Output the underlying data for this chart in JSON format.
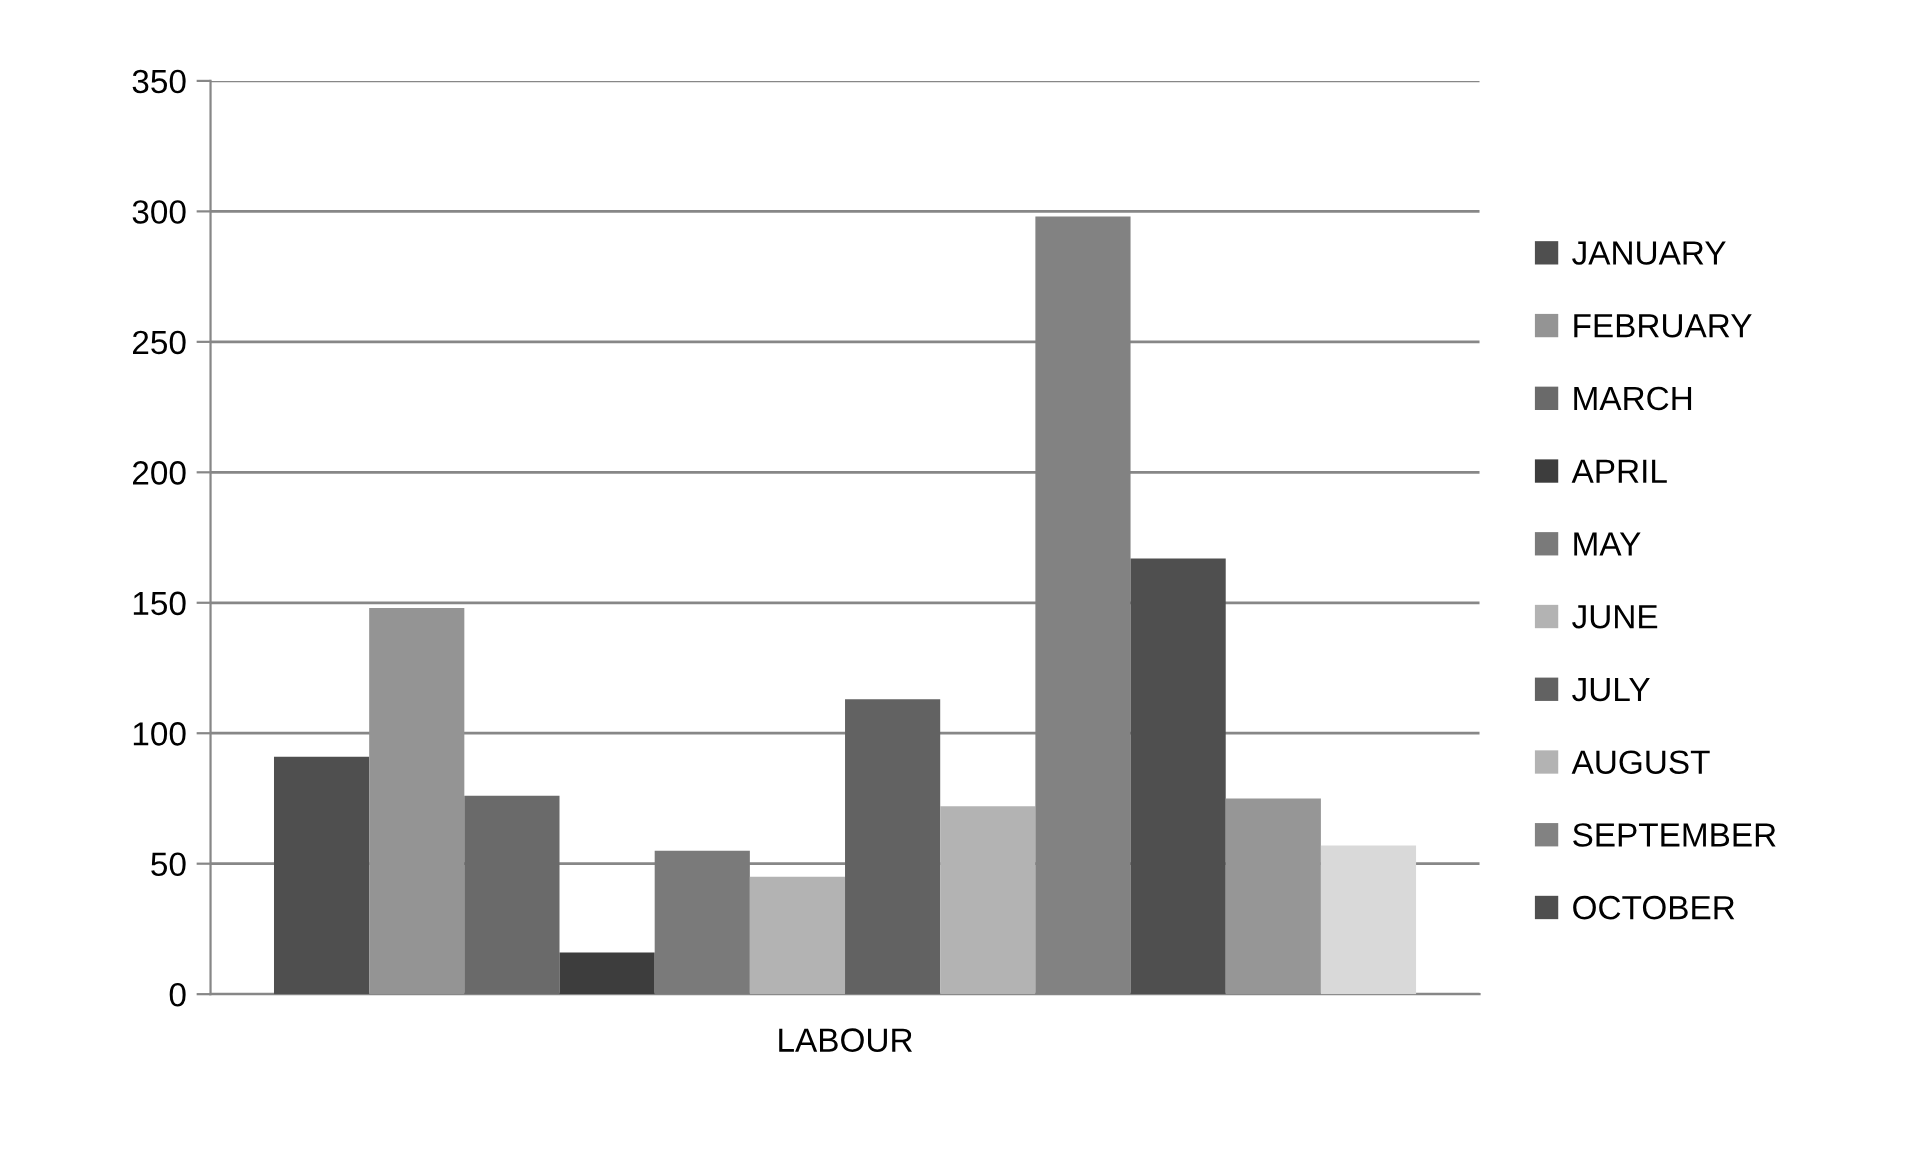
{
  "chart_data": {
    "type": "bar",
    "categories": [
      "LABOUR"
    ],
    "series": [
      {
        "name": "JANUARY",
        "color": "#4f4f4f",
        "values": [
          91
        ]
      },
      {
        "name": "FEBRUARY",
        "color": "#949494",
        "values": [
          148
        ]
      },
      {
        "name": "MARCH",
        "color": "#6a6a6a",
        "values": [
          76
        ]
      },
      {
        "name": "APRIL",
        "color": "#3d3d3d",
        "values": [
          16
        ]
      },
      {
        "name": "MAY",
        "color": "#7a7a7a",
        "values": [
          55
        ]
      },
      {
        "name": "JUNE",
        "color": "#b3b3b3",
        "values": [
          45
        ]
      },
      {
        "name": "JULY",
        "color": "#626262",
        "values": [
          113
        ]
      },
      {
        "name": "AUGUST",
        "color": "#b3b3b3",
        "values": [
          72
        ]
      },
      {
        "name": "SEPTEMBER",
        "color": "#828282",
        "values": [
          298
        ]
      },
      {
        "name": "OCTOBER",
        "color": "#4f4f4f",
        "values": [
          167
        ]
      },
      {
        "color": "#969696",
        "values": [
          75
        ]
      },
      {
        "color": "#d9d9d9",
        "values": [
          57
        ]
      }
    ],
    "ylim": [
      0,
      350
    ],
    "yticks": [
      0,
      50,
      100,
      150,
      200,
      250,
      300,
      350
    ],
    "grid": "y",
    "legend": "right"
  }
}
